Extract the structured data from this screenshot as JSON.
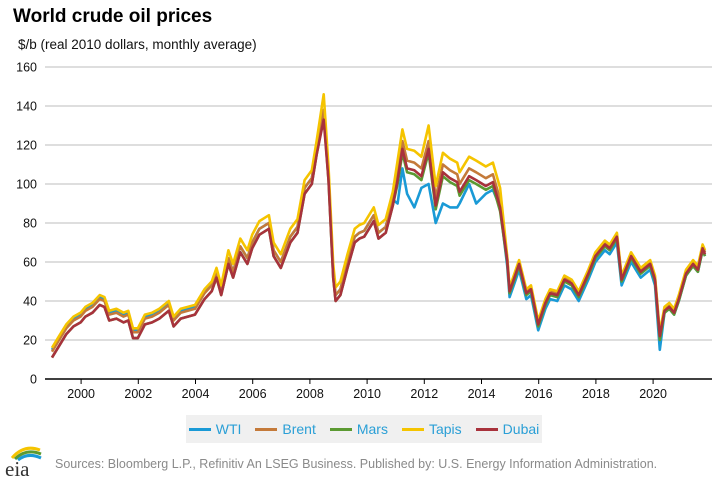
{
  "chart_data": {
    "type": "line",
    "title": "World crude oil prices",
    "ylabel": "$/b (real 2010 dollars, monthly average)",
    "ylim": [
      0,
      160
    ],
    "yticks": [
      0,
      20,
      40,
      60,
      80,
      100,
      120,
      140,
      160
    ],
    "xticks": [
      "2000",
      "2002",
      "2004",
      "2006",
      "2008",
      "2010",
      "2012",
      "2014",
      "2016",
      "2018",
      "2020"
    ],
    "grid": true,
    "legend_position": "bottom",
    "dates": [
      "1999-01",
      "1999-04",
      "1999-07",
      "1999-10",
      "2000-01",
      "2000-03",
      "2000-06",
      "2000-09",
      "2000-11",
      "2001-01",
      "2001-04",
      "2001-07",
      "2001-09",
      "2001-11",
      "2002-01",
      "2002-04",
      "2002-07",
      "2002-10",
      "2003-02",
      "2003-04",
      "2003-07",
      "2003-10",
      "2004-01",
      "2004-05",
      "2004-08",
      "2004-10",
      "2004-12",
      "2005-03",
      "2005-05",
      "2005-08",
      "2005-11",
      "2006-01",
      "2006-04",
      "2006-08",
      "2006-10",
      "2007-01",
      "2007-05",
      "2007-08",
      "2007-11",
      "2008-02",
      "2008-04",
      "2008-07",
      "2008-09",
      "2008-11",
      "2008-12",
      "2009-02",
      "2009-05",
      "2009-08",
      "2009-10",
      "2009-12",
      "2010-04",
      "2010-06",
      "2010-09",
      "2010-12",
      "2011-02",
      "2011-04",
      "2011-06",
      "2011-09",
      "2011-12",
      "2012-03",
      "2012-06",
      "2012-09",
      "2012-12",
      "2013-03",
      "2013-04",
      "2013-08",
      "2013-11",
      "2014-03",
      "2014-06",
      "2014-09",
      "2014-12",
      "2015-01",
      "2015-03",
      "2015-05",
      "2015-08",
      "2015-10",
      "2016-01",
      "2016-04",
      "2016-06",
      "2016-09",
      "2016-12",
      "2017-03",
      "2017-06",
      "2017-10",
      "2018-01",
      "2018-05",
      "2018-07",
      "2018-10",
      "2018-12",
      "2019-04",
      "2019-08",
      "2019-12",
      "2020-02",
      "2020-04",
      "2020-06",
      "2020-08",
      "2020-10",
      "2020-12",
      "2021-03",
      "2021-06",
      "2021-08",
      "2021-10",
      "2021-11"
    ],
    "series": [
      {
        "name": "WTI",
        "color": "#1a9ad6",
        "values": [
          15,
          21,
          27,
          31,
          33,
          36,
          38,
          42,
          41,
          34,
          35,
          33,
          34,
          25,
          25,
          32,
          33,
          35,
          39,
          31,
          35,
          36,
          37,
          45,
          49,
          56,
          47,
          62,
          55,
          68,
          62,
          70,
          77,
          80,
          66,
          60,
          73,
          78,
          98,
          103,
          118,
          138,
          105,
          55,
          43,
          46,
          60,
          73,
          75,
          76,
          84,
          75,
          78,
          92,
          90,
          108,
          95,
          88,
          98,
          100,
          80,
          90,
          88,
          88,
          90,
          100,
          90,
          95,
          97,
          88,
          58,
          42,
          49,
          56,
          41,
          43,
          25,
          36,
          41,
          40,
          48,
          46,
          40,
          51,
          60,
          66,
          64,
          70,
          48,
          60,
          52,
          56,
          48,
          15,
          34,
          36,
          33,
          40,
          53,
          58,
          55,
          66,
          63
        ]
      },
      {
        "name": "Brent",
        "color": "#c47a3a",
        "values": [
          14,
          20,
          26,
          30,
          32,
          35,
          37,
          41,
          40,
          33,
          34,
          32,
          33,
          24,
          24,
          31,
          32,
          34,
          38,
          30,
          34,
          35,
          36,
          44,
          48,
          55,
          46,
          62,
          55,
          68,
          62,
          70,
          77,
          80,
          66,
          60,
          73,
          78,
          98,
          103,
          118,
          138,
          105,
          55,
          43,
          46,
          60,
          73,
          75,
          76,
          84,
          75,
          78,
          92,
          106,
          122,
          112,
          111,
          108,
          122,
          93,
          110,
          107,
          105,
          100,
          108,
          106,
          103,
          105,
          92,
          62,
          46,
          53,
          60,
          45,
          47,
          29,
          40,
          45,
          44,
          52,
          50,
          44,
          55,
          64,
          70,
          68,
          74,
          52,
          64,
          56,
          60,
          52,
          23,
          36,
          38,
          35,
          42,
          55,
          60,
          57,
          68,
          65
        ]
      },
      {
        "name": "Mars",
        "color": "#5b9a32",
        "values": [
          11,
          17,
          23,
          27,
          29,
          32,
          34,
          38,
          37,
          30,
          31,
          29,
          30,
          21,
          21,
          28,
          29,
          31,
          35,
          27,
          31,
          32,
          33,
          41,
          45,
          52,
          43,
          59,
          52,
          65,
          59,
          67,
          74,
          77,
          63,
          57,
          70,
          75,
          95,
          100,
          115,
          135,
          102,
          52,
          40,
          43,
          57,
          70,
          72,
          73,
          81,
          72,
          75,
          89,
          100,
          116,
          106,
          105,
          102,
          116,
          87,
          104,
          101,
          99,
          94,
          102,
          100,
          97,
          99,
          86,
          60,
          44,
          51,
          58,
          43,
          45,
          27,
          38,
          43,
          42,
          50,
          48,
          42,
          53,
          62,
          68,
          66,
          72,
          50,
          62,
          54,
          58,
          50,
          20,
          34,
          36,
          33,
          40,
          53,
          58,
          55,
          66,
          63
        ]
      },
      {
        "name": "Tapis",
        "color": "#f5c400",
        "values": [
          16,
          22,
          28,
          32,
          34,
          37,
          39,
          43,
          42,
          35,
          36,
          34,
          35,
          26,
          26,
          33,
          34,
          36,
          40,
          32,
          36,
          37,
          38,
          46,
          50,
          57,
          48,
          66,
          59,
          72,
          66,
          74,
          81,
          84,
          70,
          64,
          77,
          82,
          102,
          107,
          122,
          146,
          109,
          59,
          47,
          50,
          64,
          77,
          79,
          80,
          88,
          79,
          82,
          96,
          112,
          128,
          118,
          117,
          114,
          130,
          99,
          116,
          113,
          111,
          106,
          114,
          112,
          109,
          111,
          98,
          63,
          47,
          54,
          61,
          46,
          48,
          30,
          41,
          46,
          45,
          53,
          51,
          45,
          56,
          65,
          71,
          69,
          75,
          53,
          65,
          57,
          61,
          53,
          24,
          37,
          39,
          36,
          43,
          56,
          61,
          58,
          69,
          66
        ]
      },
      {
        "name": "Dubai",
        "color": "#a8323c",
        "values": [
          11,
          17,
          23,
          27,
          29,
          32,
          34,
          38,
          37,
          30,
          31,
          29,
          30,
          21,
          21,
          28,
          29,
          31,
          35,
          27,
          31,
          32,
          33,
          41,
          45,
          52,
          43,
          59,
          52,
          65,
          59,
          67,
          74,
          77,
          63,
          57,
          70,
          75,
          95,
          100,
          115,
          133,
          102,
          52,
          40,
          43,
          57,
          70,
          72,
          73,
          81,
          72,
          75,
          89,
          102,
          118,
          108,
          107,
          104,
          118,
          89,
          106,
          103,
          101,
          96,
          104,
          102,
          99,
          101,
          88,
          61,
          45,
          52,
          59,
          44,
          46,
          28,
          39,
          44,
          43,
          51,
          49,
          43,
          54,
          63,
          69,
          67,
          73,
          51,
          63,
          55,
          59,
          51,
          22,
          35,
          37,
          34,
          41,
          54,
          59,
          56,
          67,
          64
        ]
      }
    ]
  },
  "footer": {
    "source": "Sources: Bloomberg L.P., Refinitiv An LSEG Business. Published by: U.S. Energy Information Administration.",
    "logo_text": "eia"
  }
}
